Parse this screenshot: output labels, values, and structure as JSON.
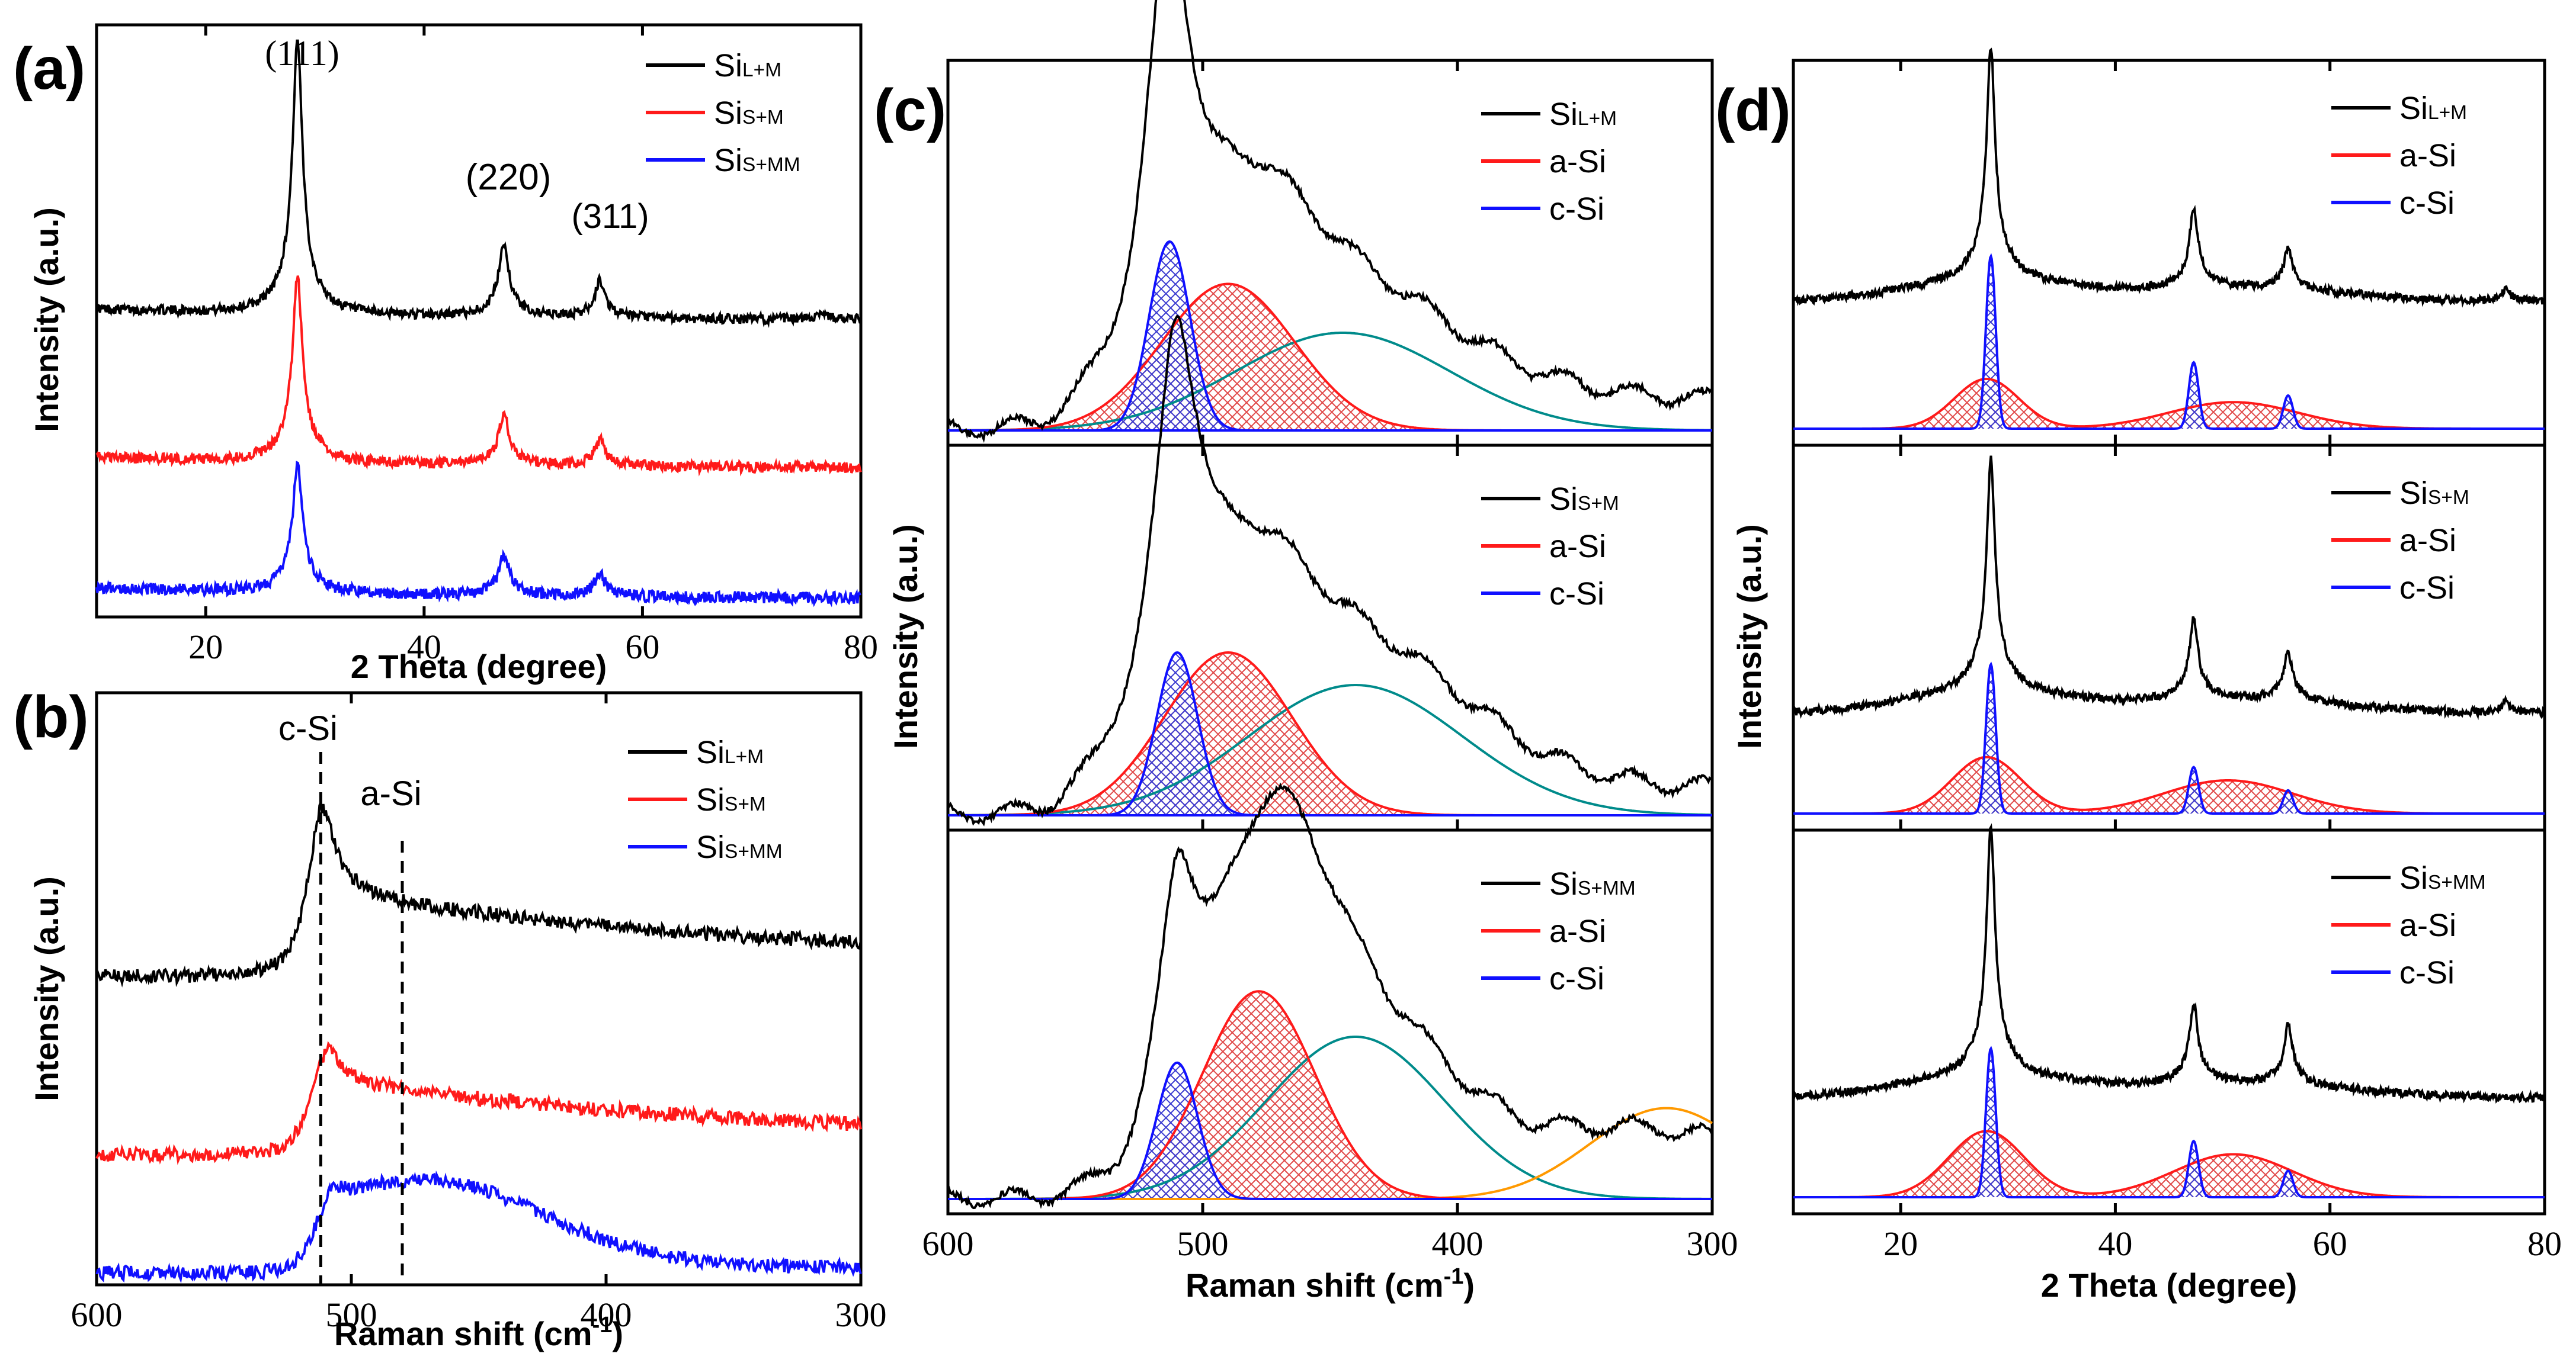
{
  "figure": {
    "colors": {
      "black": "#000000",
      "red": "#ff1a1a",
      "blue": "#1010ff",
      "teal": "#008b8b",
      "orange": "#ff9900",
      "hatch_red": "#e04848",
      "hatch_blue": "#3a3ad0"
    }
  },
  "chart_data": [
    {
      "id": "a",
      "panel_label": "(a)",
      "type": "line",
      "xlabel": "2 Theta (degree)",
      "ylabel": "Intensity (a.u.)",
      "xlim": [
        10,
        80
      ],
      "xticks": [
        "20",
        "40",
        "60",
        "80"
      ],
      "xtick_values": [
        20,
        40,
        60,
        80
      ],
      "peak_annotations": [
        {
          "label": "(111)",
          "x": 28.4
        },
        {
          "label": "(220)",
          "x": 47.3
        },
        {
          "label": "(311)",
          "x": 56.1
        }
      ],
      "legend": [
        {
          "base": "Si",
          "sub": "L+M",
          "color": "#000000"
        },
        {
          "base": "Si",
          "sub": "S+M",
          "color": "#ff1a1a"
        },
        {
          "base": "Si",
          "sub": "S+MM",
          "color": "#1010ff"
        }
      ],
      "series": [
        {
          "name": "SiL+M",
          "offset": 0.5,
          "noise": 0.008,
          "peaks": [
            {
              "x": 28.4,
              "h": 0.37
            },
            {
              "x": 47.3,
              "h": 0.1
            },
            {
              "x": 56.1,
              "h": 0.05
            },
            {
              "x": 76.4,
              "h": 0.01
            }
          ]
        },
        {
          "name": "SiS+M",
          "offset": 0.25,
          "noise": 0.009,
          "peaks": [
            {
              "x": 28.4,
              "h": 0.25
            },
            {
              "x": 47.3,
              "h": 0.07
            },
            {
              "x": 56.1,
              "h": 0.035
            }
          ]
        },
        {
          "name": "SiS+MM",
          "offset": 0.03,
          "noise": 0.01,
          "peaks": [
            {
              "x": 28.4,
              "h": 0.17
            },
            {
              "x": 47.3,
              "h": 0.055
            },
            {
              "x": 56.1,
              "h": 0.03
            }
          ]
        }
      ]
    },
    {
      "id": "b",
      "panel_label": "(b)",
      "type": "line",
      "xlabel": "Raman shift (cm",
      "xlabel_sup": "-1",
      "xlabel_end": ")",
      "ylabel": "Intensity (a.u.)",
      "xlim": [
        600,
        300
      ],
      "xticks": [
        "600",
        "500",
        "400",
        "300"
      ],
      "xtick_values": [
        600,
        500,
        400,
        300
      ],
      "markers": [
        {
          "label": "c-Si",
          "x": 512
        },
        {
          "label": "a-Si",
          "x": 480
        }
      ],
      "legend": [
        {
          "base": "Si",
          "sub": "L+M",
          "color": "#000000"
        },
        {
          "base": "Si",
          "sub": "S+M",
          "color": "#ff1a1a"
        },
        {
          "base": "Si",
          "sub": "S+MM",
          "color": "#1010ff"
        }
      ],
      "series": [
        {
          "name": "SiL+M",
          "offset": 0.52,
          "noise": 0.012,
          "amp": 0.34,
          "shape": "cSi"
        },
        {
          "name": "SiS+M",
          "offset": 0.22,
          "noise": 0.012,
          "amp": 0.22,
          "shape": "mix"
        },
        {
          "name": "SiS+MM",
          "offset": 0.02,
          "noise": 0.012,
          "amp": 0.18,
          "shape": "amorph"
        }
      ]
    },
    {
      "id": "c",
      "panel_label": "(c)",
      "type": "line",
      "xlabel": "Raman shift (cm",
      "xlabel_sup": "-1",
      "xlabel_end": ")",
      "ylabel": "Intensity (a.u.)",
      "xlim": [
        600,
        300
      ],
      "xticks": [
        "600",
        "500",
        "400",
        "300"
      ],
      "xtick_values": [
        600,
        500,
        400,
        300
      ],
      "subplots": [
        {
          "legend": [
            {
              "base": "Si",
              "sub": "L+M",
              "color": "#000000"
            },
            {
              "text": "a-Si",
              "color": "#ff1a1a"
            },
            {
              "text": "c-Si",
              "color": "#1010ff"
            }
          ],
          "fits": {
            "c": {
              "x": 513,
              "h": 0.58,
              "w": 8
            },
            "a": {
              "x": 490,
              "h": 0.45,
              "w": 26
            },
            "t": {
              "x": 445,
              "h": 0.3,
              "w": 42
            },
            "o": null
          },
          "measured_peak": {
            "x": 514,
            "h": 1.0
          }
        },
        {
          "legend": [
            {
              "base": "Si",
              "sub": "S+M",
              "color": "#000000"
            },
            {
              "text": "a-Si",
              "color": "#ff1a1a"
            },
            {
              "text": "c-Si",
              "color": "#1010ff"
            }
          ],
          "fits": {
            "c": {
              "x": 510,
              "h": 0.5,
              "w": 8
            },
            "a": {
              "x": 490,
              "h": 0.5,
              "w": 25
            },
            "t": {
              "x": 440,
              "h": 0.4,
              "w": 42
            },
            "o": null
          },
          "measured_peak": {
            "x": 511,
            "h": 0.99
          }
        },
        {
          "legend": [
            {
              "base": "Si",
              "sub": "S+MM",
              "color": "#000000"
            },
            {
              "text": "a-Si",
              "color": "#ff1a1a"
            },
            {
              "text": "c-Si",
              "color": "#1010ff"
            }
          ],
          "fits": {
            "c": {
              "x": 510,
              "h": 0.42,
              "w": 8
            },
            "a": {
              "x": 478,
              "h": 0.64,
              "w": 22
            },
            "t": {
              "x": 440,
              "h": 0.5,
              "w": 35
            },
            "o": {
              "x": 318,
              "h": 0.28,
              "w": 30
            }
          },
          "measured_peak": {
            "x": 465,
            "h": 1.0
          }
        }
      ]
    },
    {
      "id": "d",
      "panel_label": "(d)",
      "type": "line",
      "xlabel": "2 Theta (degree)",
      "ylabel": "Intensity (a.u.)",
      "xlim": [
        10,
        80
      ],
      "xticks": [
        "20",
        "40",
        "60",
        "80"
      ],
      "xtick_values": [
        20,
        40,
        60,
        80
      ],
      "subplots": [
        {
          "legend": [
            {
              "base": "Si",
              "sub": "L+M",
              "color": "#000000"
            },
            {
              "text": "a-Si",
              "color": "#ff1a1a"
            },
            {
              "text": "c-Si",
              "color": "#1010ff"
            }
          ],
          "measured": {
            "offset": 0.38,
            "peaks": [
              {
                "x": 28.4,
                "h": 0.58
              },
              {
                "x": 47.3,
                "h": 0.2
              },
              {
                "x": 56.1,
                "h": 0.1
              },
              {
                "x": 76.4,
                "h": 0.03
              }
            ]
          },
          "fits_a": [
            {
              "x": 28,
              "h": 0.15,
              "w": 3
            },
            {
              "x": 51,
              "h": 0.08,
              "w": 6
            }
          ],
          "fits_c": [
            {
              "x": 28.4,
              "h": 0.52,
              "w": 0.45
            },
            {
              "x": 47.3,
              "h": 0.2,
              "w": 0.45
            },
            {
              "x": 56.1,
              "h": 0.1,
              "w": 0.45
            }
          ]
        },
        {
          "legend": [
            {
              "base": "Si",
              "sub": "S+M",
              "color": "#000000"
            },
            {
              "text": "a-Si",
              "color": "#ff1a1a"
            },
            {
              "text": "c-Si",
              "color": "#1010ff"
            }
          ],
          "measured": {
            "offset": 0.3,
            "peaks": [
              {
                "x": 28.4,
                "h": 0.58
              },
              {
                "x": 47.3,
                "h": 0.2
              },
              {
                "x": 56.1,
                "h": 0.12
              },
              {
                "x": 76.4,
                "h": 0.03
              }
            ]
          },
          "fits_a": [
            {
              "x": 28,
              "h": 0.17,
              "w": 3.2
            },
            {
              "x": 50.5,
              "h": 0.1,
              "w": 6
            }
          ],
          "fits_c": [
            {
              "x": 28.4,
              "h": 0.45,
              "w": 0.45
            },
            {
              "x": 47.3,
              "h": 0.14,
              "w": 0.45
            },
            {
              "x": 56.1,
              "h": 0.07,
              "w": 0.45
            }
          ]
        },
        {
          "legend": [
            {
              "base": "Si",
              "sub": "S+MM",
              "color": "#000000"
            },
            {
              "text": "a-Si",
              "color": "#ff1a1a"
            },
            {
              "text": "c-Si",
              "color": "#1010ff"
            }
          ],
          "measured": {
            "offset": 0.3,
            "peaks": [
              {
                "x": 28.4,
                "h": 0.62
              },
              {
                "x": 47.3,
                "h": 0.2
              },
              {
                "x": 56.1,
                "h": 0.15
              }
            ]
          },
          "fits_a": [
            {
              "x": 28,
              "h": 0.2,
              "w": 3.5
            },
            {
              "x": 51,
              "h": 0.13,
              "w": 5.5
            }
          ],
          "fits_c": [
            {
              "x": 28.4,
              "h": 0.45,
              "w": 0.45
            },
            {
              "x": 47.3,
              "h": 0.17,
              "w": 0.45
            },
            {
              "x": 56.1,
              "h": 0.08,
              "w": 0.45
            }
          ]
        }
      ]
    }
  ]
}
